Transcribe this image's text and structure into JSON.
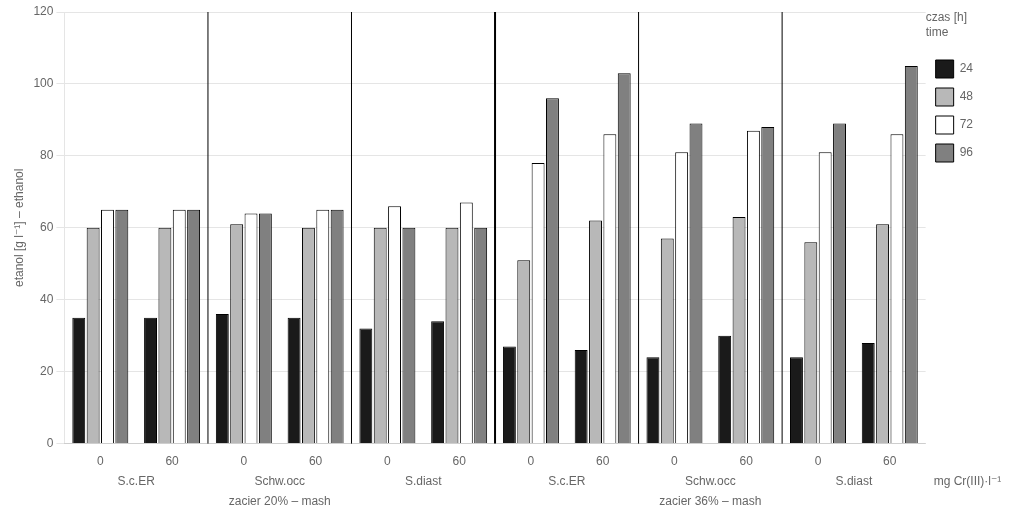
{
  "chart_data": {
    "type": "bar",
    "ylabel": "etanol [g l⁻¹] – ethanol",
    "xlabel": "mg Cr(III)·l⁻¹",
    "categories": [
      "0",
      "60",
      "0",
      "60",
      "0",
      "60",
      "0",
      "60",
      "0",
      "60",
      "0",
      "60"
    ],
    "category_groups": [
      "S.c.ER",
      "Schw.occ",
      "S.diast",
      "S.c.ER",
      "Schw.occ",
      "S.diast"
    ],
    "category_supergroups": [
      "zacier 20% – mash",
      "zacier 36% – mash"
    ],
    "legend_title": "czas [h]\ntime",
    "series": [
      {
        "name": "24",
        "color": "#1a1a1a",
        "values": [
          35,
          35,
          36,
          35,
          32,
          34,
          27,
          26,
          24,
          30,
          24,
          28
        ]
      },
      {
        "name": "48",
        "color": "#b8b8b8",
        "values": [
          60,
          60,
          61,
          60,
          60,
          60,
          51,
          62,
          57,
          63,
          56,
          61
        ]
      },
      {
        "name": "72",
        "color": "#ffffff",
        "values": [
          65,
          65,
          64,
          65,
          66,
          67,
          78,
          86,
          81,
          87,
          81,
          86
        ]
      },
      {
        "name": "96",
        "color": "#808080",
        "values": [
          65,
          65,
          64,
          65,
          60,
          60,
          96,
          103,
          89,
          88,
          89,
          105
        ]
      }
    ],
    "ylim": [
      0,
      120
    ],
    "yticks": [
      0,
      20,
      40,
      60,
      80,
      100,
      120
    ],
    "grid": true,
    "legend": "upper right"
  }
}
